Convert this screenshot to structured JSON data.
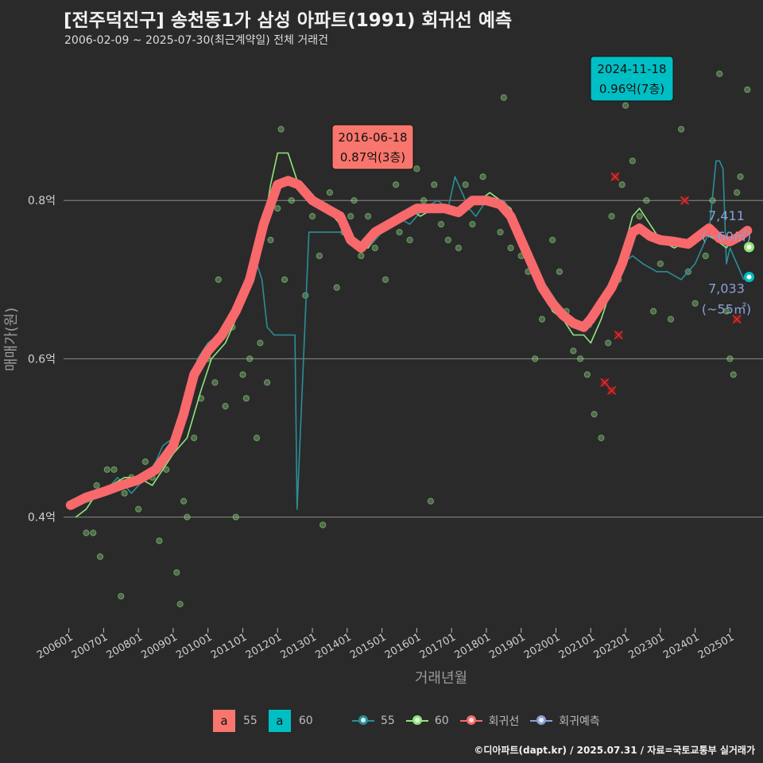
{
  "header": {
    "title": "[전주덕진구] 송천동1가 삼성 아파트(1991) 회귀선 예측",
    "subtitle": "2006-02-09 ~ 2025-07-30(최근계약일) 전체 거래건"
  },
  "caption": "©디아파트(dapt.kr) / 2025.07.31 / 자료=국토교통부 실거래가",
  "colors": {
    "background": "#2a2a2b",
    "s55": "#00bfc4",
    "s55_line": "#2a8f96",
    "s60": "#8ee77a",
    "regression": "#f8696b",
    "predict": "#8aa0d6",
    "grid": "#8a8a8a"
  },
  "chart_data": {
    "type": "line",
    "xlabel": "거래년월",
    "ylabel": "매매가(원)",
    "x_ticks": [
      "200601",
      "200701",
      "200801",
      "200901",
      "201001",
      "201101",
      "201201",
      "201301",
      "201401",
      "201501",
      "201601",
      "201701",
      "201801",
      "201901",
      "202001",
      "202101",
      "202201",
      "202301",
      "202401",
      "202501"
    ],
    "y_ticks": [
      {
        "value": 0.4,
        "label": "0.4억"
      },
      {
        "value": 0.6,
        "label": "0.6억"
      },
      {
        "value": 0.8,
        "label": "0.8억"
      }
    ],
    "ylim": [
      0.26,
      0.99
    ],
    "xlim": [
      2005.85,
      2025.95
    ],
    "series": [
      {
        "name": "55",
        "kind": "line",
        "color": "#2a8f96",
        "points": [
          [
            2006.2,
            0.415
          ],
          [
            2006.6,
            0.42
          ],
          [
            2007.0,
            0.43
          ],
          [
            2007.4,
            0.45
          ],
          [
            2007.8,
            0.43
          ],
          [
            2008.2,
            0.45
          ],
          [
            2008.5,
            0.47
          ],
          [
            2008.7,
            0.49
          ],
          [
            2009.0,
            0.5
          ],
          [
            2009.2,
            0.53
          ],
          [
            2009.5,
            0.56
          ],
          [
            2009.7,
            0.6
          ],
          [
            2010.0,
            0.62
          ],
          [
            2010.3,
            0.63
          ],
          [
            2010.6,
            0.65
          ],
          [
            2010.9,
            0.67
          ],
          [
            2011.2,
            0.7
          ],
          [
            2011.4,
            0.72
          ],
          [
            2011.55,
            0.7
          ],
          [
            2011.7,
            0.64
          ],
          [
            2011.9,
            0.63
          ],
          [
            2012.3,
            0.63
          ],
          [
            2012.5,
            0.63
          ],
          [
            2012.56,
            0.41
          ],
          [
            2012.56,
            0.41
          ],
          [
            2012.9,
            0.76
          ],
          [
            2013.3,
            0.76
          ],
          [
            2013.6,
            0.76
          ],
          [
            2014.0,
            0.76
          ],
          [
            2014.3,
            0.75
          ],
          [
            2014.6,
            0.74
          ],
          [
            2015.0,
            0.76
          ],
          [
            2015.4,
            0.78
          ],
          [
            2015.8,
            0.77
          ],
          [
            2016.2,
            0.79
          ],
          [
            2016.6,
            0.8
          ],
          [
            2016.9,
            0.79
          ],
          [
            2017.1,
            0.83
          ],
          [
            2017.3,
            0.81
          ],
          [
            2017.5,
            0.79
          ],
          [
            2017.7,
            0.78
          ],
          [
            2018.0,
            0.8
          ],
          [
            2018.3,
            0.8
          ],
          [
            2018.5,
            0.8
          ],
          [
            2018.8,
            0.78
          ],
          [
            2019.0,
            0.75
          ],
          [
            2019.3,
            0.73
          ],
          [
            2019.6,
            0.7
          ],
          [
            2019.9,
            0.68
          ],
          [
            2020.2,
            0.66
          ],
          [
            2020.5,
            0.65
          ],
          [
            2020.8,
            0.64
          ],
          [
            2021.0,
            0.64
          ],
          [
            2021.2,
            0.66
          ],
          [
            2021.4,
            0.68
          ],
          [
            2021.6,
            0.7
          ],
          [
            2021.9,
            0.72
          ],
          [
            2022.2,
            0.73
          ],
          [
            2022.5,
            0.72
          ],
          [
            2022.9,
            0.71
          ],
          [
            2023.2,
            0.71
          ],
          [
            2023.6,
            0.7
          ],
          [
            2024.0,
            0.72
          ],
          [
            2024.4,
            0.76
          ],
          [
            2024.6,
            0.85
          ],
          [
            2024.7,
            0.85
          ],
          [
            2024.8,
            0.84
          ],
          [
            2024.9,
            0.72
          ],
          [
            2025.0,
            0.74
          ],
          [
            2025.2,
            0.72
          ],
          [
            2025.4,
            0.7
          ]
        ]
      },
      {
        "name": "60",
        "kind": "line",
        "color": "#8ee77a",
        "points": [
          [
            2006.2,
            0.4
          ],
          [
            2006.5,
            0.41
          ],
          [
            2006.8,
            0.43
          ],
          [
            2007.2,
            0.44
          ],
          [
            2007.6,
            0.45
          ],
          [
            2008.0,
            0.45
          ],
          [
            2008.4,
            0.44
          ],
          [
            2008.7,
            0.46
          ],
          [
            2009.0,
            0.48
          ],
          [
            2009.4,
            0.5
          ],
          [
            2009.8,
            0.56
          ],
          [
            2010.1,
            0.6
          ],
          [
            2010.5,
            0.62
          ],
          [
            2010.9,
            0.66
          ],
          [
            2011.2,
            0.7
          ],
          [
            2011.5,
            0.74
          ],
          [
            2011.8,
            0.82
          ],
          [
            2012.0,
            0.86
          ],
          [
            2012.3,
            0.86
          ],
          [
            2012.6,
            0.82
          ],
          [
            2013.0,
            0.8
          ],
          [
            2013.4,
            0.79
          ],
          [
            2013.8,
            0.77
          ],
          [
            2014.2,
            0.74
          ],
          [
            2014.6,
            0.74
          ],
          [
            2015.0,
            0.77
          ],
          [
            2015.4,
            0.78
          ],
          [
            2015.8,
            0.79
          ],
          [
            2016.1,
            0.78
          ],
          [
            2016.5,
            0.79
          ],
          [
            2016.9,
            0.79
          ],
          [
            2017.2,
            0.78
          ],
          [
            2017.5,
            0.79
          ],
          [
            2017.8,
            0.8
          ],
          [
            2018.1,
            0.81
          ],
          [
            2018.4,
            0.8
          ],
          [
            2018.7,
            0.79
          ],
          [
            2019.0,
            0.76
          ],
          [
            2019.3,
            0.72
          ],
          [
            2019.6,
            0.69
          ],
          [
            2019.9,
            0.66
          ],
          [
            2020.2,
            0.65
          ],
          [
            2020.5,
            0.63
          ],
          [
            2020.8,
            0.63
          ],
          [
            2021.0,
            0.62
          ],
          [
            2021.3,
            0.65
          ],
          [
            2021.6,
            0.69
          ],
          [
            2021.9,
            0.73
          ],
          [
            2022.2,
            0.78
          ],
          [
            2022.4,
            0.79
          ],
          [
            2022.7,
            0.77
          ],
          [
            2023.0,
            0.75
          ],
          [
            2023.4,
            0.74
          ],
          [
            2023.8,
            0.75
          ],
          [
            2024.2,
            0.76
          ],
          [
            2024.6,
            0.75
          ],
          [
            2024.9,
            0.74
          ],
          [
            2025.2,
            0.76
          ],
          [
            2025.4,
            0.75
          ]
        ]
      },
      {
        "name": "회귀선",
        "kind": "band",
        "color": "#f8696b",
        "points": [
          [
            2006.05,
            0.415
          ],
          [
            2006.5,
            0.425
          ],
          [
            2007.0,
            0.432
          ],
          [
            2007.5,
            0.44
          ],
          [
            2008.0,
            0.447
          ],
          [
            2008.5,
            0.46
          ],
          [
            2009.0,
            0.49
          ],
          [
            2009.3,
            0.53
          ],
          [
            2009.6,
            0.58
          ],
          [
            2010.0,
            0.61
          ],
          [
            2010.4,
            0.63
          ],
          [
            2010.8,
            0.66
          ],
          [
            2011.2,
            0.7
          ],
          [
            2011.6,
            0.77
          ],
          [
            2012.0,
            0.82
          ],
          [
            2012.3,
            0.825
          ],
          [
            2012.6,
            0.82
          ],
          [
            2013.0,
            0.8
          ],
          [
            2013.4,
            0.79
          ],
          [
            2013.8,
            0.78
          ],
          [
            2014.1,
            0.75
          ],
          [
            2014.4,
            0.74
          ],
          [
            2014.8,
            0.76
          ],
          [
            2015.2,
            0.77
          ],
          [
            2015.6,
            0.78
          ],
          [
            2016.0,
            0.79
          ],
          [
            2016.4,
            0.79
          ],
          [
            2016.8,
            0.79
          ],
          [
            2017.2,
            0.785
          ],
          [
            2017.6,
            0.8
          ],
          [
            2018.0,
            0.8
          ],
          [
            2018.4,
            0.795
          ],
          [
            2018.7,
            0.78
          ],
          [
            2019.0,
            0.75
          ],
          [
            2019.3,
            0.72
          ],
          [
            2019.6,
            0.69
          ],
          [
            2019.9,
            0.67
          ],
          [
            2020.2,
            0.655
          ],
          [
            2020.5,
            0.645
          ],
          [
            2020.8,
            0.64
          ],
          [
            2021.0,
            0.65
          ],
          [
            2021.3,
            0.67
          ],
          [
            2021.6,
            0.69
          ],
          [
            2021.9,
            0.72
          ],
          [
            2022.2,
            0.76
          ],
          [
            2022.4,
            0.765
          ],
          [
            2022.7,
            0.755
          ],
          [
            2023.0,
            0.75
          ],
          [
            2023.4,
            0.748
          ],
          [
            2023.8,
            0.745
          ],
          [
            2024.1,
            0.755
          ],
          [
            2024.4,
            0.765
          ],
          [
            2024.7,
            0.752
          ],
          [
            2025.0,
            0.748
          ],
          [
            2025.3,
            0.755
          ],
          [
            2025.5,
            0.762
          ]
        ]
      }
    ],
    "scatter": [
      [
        2006.3,
        0.42
      ],
      [
        2006.5,
        0.38
      ],
      [
        2006.7,
        0.38
      ],
      [
        2006.8,
        0.44
      ],
      [
        2006.9,
        0.35
      ],
      [
        2007.1,
        0.46
      ],
      [
        2007.3,
        0.46
      ],
      [
        2007.5,
        0.3
      ],
      [
        2007.6,
        0.43
      ],
      [
        2007.8,
        0.45
      ],
      [
        2008.0,
        0.41
      ],
      [
        2008.2,
        0.47
      ],
      [
        2008.4,
        0.45
      ],
      [
        2008.6,
        0.37
      ],
      [
        2008.8,
        0.46
      ],
      [
        2009.1,
        0.33
      ],
      [
        2009.2,
        0.29
      ],
      [
        2009.3,
        0.42
      ],
      [
        2009.4,
        0.4
      ],
      [
        2009.6,
        0.5
      ],
      [
        2009.8,
        0.55
      ],
      [
        2010.0,
        0.6
      ],
      [
        2010.2,
        0.57
      ],
      [
        2010.3,
        0.7
      ],
      [
        2010.5,
        0.54
      ],
      [
        2010.7,
        0.64
      ],
      [
        2010.8,
        0.4
      ],
      [
        2011.0,
        0.58
      ],
      [
        2011.1,
        0.55
      ],
      [
        2011.2,
        0.6
      ],
      [
        2011.4,
        0.5
      ],
      [
        2011.5,
        0.62
      ],
      [
        2011.7,
        0.57
      ],
      [
        2011.8,
        0.75
      ],
      [
        2012.0,
        0.79
      ],
      [
        2012.1,
        0.89
      ],
      [
        2012.2,
        0.7
      ],
      [
        2012.4,
        0.8
      ],
      [
        2012.6,
        0.82
      ],
      [
        2012.8,
        0.68
      ],
      [
        2013.0,
        0.78
      ],
      [
        2013.2,
        0.73
      ],
      [
        2013.3,
        0.39
      ],
      [
        2013.5,
        0.81
      ],
      [
        2013.7,
        0.69
      ],
      [
        2013.9,
        0.76
      ],
      [
        2014.1,
        0.78
      ],
      [
        2014.2,
        0.8
      ],
      [
        2014.4,
        0.73
      ],
      [
        2014.6,
        0.78
      ],
      [
        2014.8,
        0.74
      ],
      [
        2015.1,
        0.7
      ],
      [
        2015.4,
        0.82
      ],
      [
        2015.5,
        0.76
      ],
      [
        2015.8,
        0.75
      ],
      [
        2016.0,
        0.84
      ],
      [
        2016.2,
        0.8
      ],
      [
        2016.4,
        0.42
      ],
      [
        2016.5,
        0.82
      ],
      [
        2016.7,
        0.77
      ],
      [
        2016.9,
        0.75
      ],
      [
        2017.2,
        0.74
      ],
      [
        2017.4,
        0.82
      ],
      [
        2017.6,
        0.77
      ],
      [
        2017.9,
        0.83
      ],
      [
        2018.2,
        0.8
      ],
      [
        2018.4,
        0.76
      ],
      [
        2018.5,
        0.93
      ],
      [
        2018.7,
        0.74
      ],
      [
        2019.0,
        0.73
      ],
      [
        2019.2,
        0.71
      ],
      [
        2019.4,
        0.6
      ],
      [
        2019.6,
        0.65
      ],
      [
        2019.9,
        0.75
      ],
      [
        2020.1,
        0.71
      ],
      [
        2020.3,
        0.66
      ],
      [
        2020.5,
        0.61
      ],
      [
        2020.7,
        0.6
      ],
      [
        2020.9,
        0.58
      ],
      [
        2021.1,
        0.53
      ],
      [
        2021.3,
        0.5
      ],
      [
        2021.5,
        0.62
      ],
      [
        2021.6,
        0.78
      ],
      [
        2021.8,
        0.7
      ],
      [
        2021.9,
        0.82
      ],
      [
        2022.0,
        0.92
      ],
      [
        2022.2,
        0.85
      ],
      [
        2022.4,
        0.78
      ],
      [
        2022.6,
        0.8
      ],
      [
        2022.8,
        0.66
      ],
      [
        2023.0,
        0.72
      ],
      [
        2023.3,
        0.65
      ],
      [
        2023.6,
        0.89
      ],
      [
        2023.8,
        0.71
      ],
      [
        2024.0,
        0.67
      ],
      [
        2024.3,
        0.73
      ],
      [
        2024.5,
        0.8
      ],
      [
        2024.7,
        0.96
      ],
      [
        2024.9,
        0.66
      ],
      [
        2025.0,
        0.6
      ],
      [
        2025.1,
        0.58
      ],
      [
        2025.2,
        0.81
      ],
      [
        2025.3,
        0.83
      ],
      [
        2025.5,
        0.94
      ]
    ],
    "cancelled": [
      [
        2021.4,
        0.57
      ],
      [
        2021.6,
        0.56
      ],
      [
        2021.7,
        0.83
      ],
      [
        2021.8,
        0.63
      ],
      [
        2023.7,
        0.8
      ],
      [
        2025.2,
        0.65
      ]
    ],
    "predictions": [
      {
        "name": "60",
        "x": 2025.55,
        "y": 0.7411,
        "value_label": "7,411",
        "area_label": "(~60㎡)",
        "color": "#8ee77a"
      },
      {
        "name": "55",
        "x": 2025.55,
        "y": 0.7033,
        "value_label": "7,033",
        "area_label": "(~55㎡)",
        "color": "#00bfc4"
      }
    ],
    "annotations": [
      {
        "date": "2016-06-18",
        "value": "0.87억(3층)",
        "x": 2016.46,
        "y": 0.87,
        "color": "#f8766d"
      },
      {
        "date": "2024-11-18",
        "value": "0.96억(7층)",
        "x": 2024.88,
        "y": 0.96,
        "color": "#00bfc4"
      }
    ]
  },
  "legend": {
    "area_items": [
      {
        "glyph": "a",
        "label": "55",
        "color": "#f8766d"
      },
      {
        "glyph": "a",
        "label": "60",
        "color": "#00bfc4"
      }
    ],
    "line_items": [
      {
        "label": "55",
        "color": "#2a8f96"
      },
      {
        "label": "60",
        "color": "#8ee77a"
      },
      {
        "label": "회귀선",
        "color": "#f8696b"
      },
      {
        "label": "회귀예측",
        "color": "#8aa0d6"
      }
    ]
  }
}
